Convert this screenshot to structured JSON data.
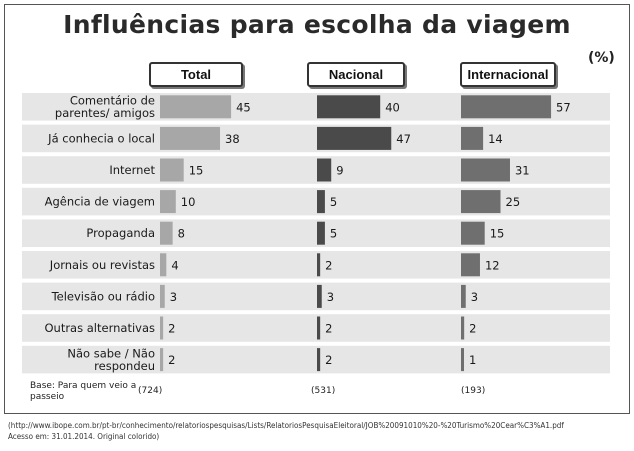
{
  "title": "Influências para escolha da viagem",
  "unit_label": "(%)",
  "chart_data": {
    "type": "bar",
    "orientation": "horizontal",
    "title": "Influências para escolha da viagem",
    "categories": [
      "Comentário de parentes/ amigos",
      "Já conhecia o local",
      "Internet",
      "Agência de viagem",
      "Propaganda",
      "Jornais ou revistas",
      "Televisão ou rádio",
      "Outras alternativas",
      "Não sabe / Não respondeu"
    ],
    "category_lines": [
      [
        "Comentário de",
        "parentes/ amigos"
      ],
      [
        "Já conhecia o local"
      ],
      [
        "Internet"
      ],
      [
        "Agência de viagem"
      ],
      [
        "Propaganda"
      ],
      [
        "Jornais ou revistas"
      ],
      [
        "Televisão ou rádio"
      ],
      [
        "Outras alternativas"
      ],
      [
        "Não sabe / Não",
        "respondeu"
      ]
    ],
    "series": [
      {
        "name": "Total",
        "values": [
          45,
          38,
          15,
          10,
          8,
          4,
          3,
          2,
          2
        ],
        "color": "#a7a7a7",
        "base_n": "(724)"
      },
      {
        "name": "Nacional",
        "values": [
          40,
          47,
          9,
          5,
          5,
          2,
          3,
          2,
          2
        ],
        "color": "#4a4a4a",
        "base_n": "(531)"
      },
      {
        "name": "Internacional",
        "values": [
          57,
          14,
          31,
          25,
          15,
          12,
          3,
          2,
          1
        ],
        "color": "#6f6f6f",
        "base_n": "(193)"
      }
    ],
    "stripe_color": "#e6e6e6",
    "base_label": "Base: Para quem veio a passeio"
  },
  "source": "(http://www.ibope.com.br/pt-br/conhecimento/relatoriospesquisas/Lists/RelatoriosPesquisaEleitoral/JOB%20091010%20-%20Turismo%20Cear%C3%A1.pdf",
  "access": "Acesso em: 31.01.2014. Original colorido)"
}
